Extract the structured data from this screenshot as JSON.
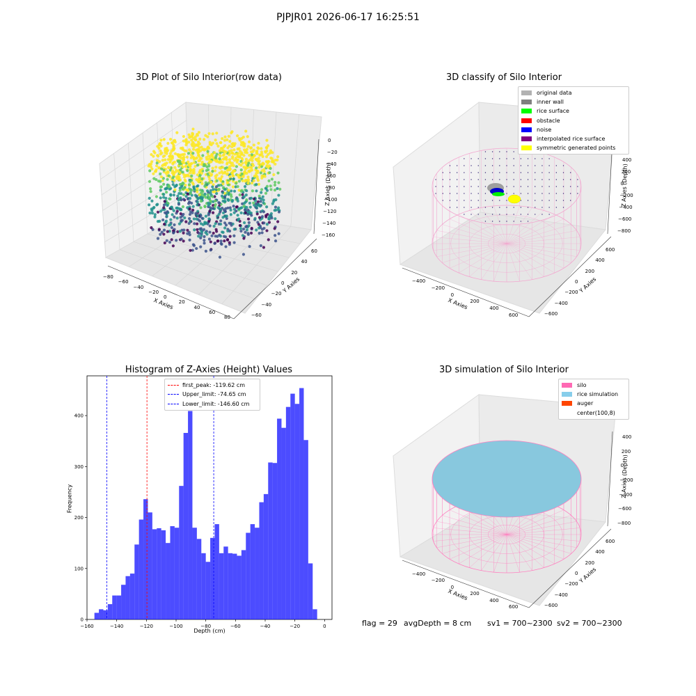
{
  "figure": {
    "suptitle": "PJPJR01 2026-06-17 16:25:51",
    "status": {
      "flag": "flag = 29",
      "avg_depth": "avgDepth = 8 cm",
      "sv1": "sv1 = 700~2300",
      "sv2": "sv2 = 700~2300"
    }
  },
  "panels": {
    "raw": {
      "title": "3D Plot of Silo Interior(row data)",
      "xlabel": "X Axies",
      "ylabel": "Y Axies",
      "zlabel": "Z Axies (Depth)",
      "xticks": [
        "−80",
        "−60",
        "−40",
        "−20",
        "0",
        "20",
        "40",
        "60",
        "80"
      ],
      "yticks": [
        "−60",
        "−40",
        "−20",
        "0",
        "20",
        "40",
        "60"
      ],
      "zticks": [
        "0",
        "−20",
        "−40",
        "−60",
        "−80",
        "−100",
        "−120",
        "−140",
        "−160"
      ],
      "colormap": "viridis"
    },
    "classify": {
      "title": "3D classify of Silo Interior",
      "xlabel": "X Axies",
      "ylabel": "Y Axies",
      "zlabel": "Z Axies (Depth)",
      "xticks": [
        "−400",
        "−200",
        "0",
        "200",
        "400",
        "600"
      ],
      "yticks": [
        "−600",
        "−400",
        "−200",
        "0",
        "200",
        "400",
        "600"
      ],
      "zticks": [
        "400",
        "200",
        "0",
        "−200",
        "−400",
        "−600",
        "−800"
      ],
      "legend": [
        {
          "label": "original data",
          "color": "#b2b2b2"
        },
        {
          "label": "inner wall",
          "color": "#808080"
        },
        {
          "label": "rice surface",
          "color": "#00ff00"
        },
        {
          "label": "obstacle",
          "color": "#ff0000"
        },
        {
          "label": "noise",
          "color": "#0000ff"
        },
        {
          "label": "interpolated rice surface",
          "color": "#800080"
        },
        {
          "label": "symmetric generated points",
          "color": "#ffff00"
        }
      ]
    },
    "simulation": {
      "title": "3D simulation of Silo Interior",
      "xlabel": "X Axies",
      "ylabel": "Y Axies",
      "zlabel": "Z Axies (Depth)",
      "xticks": [
        "−400",
        "−200",
        "0",
        "200",
        "400",
        "600"
      ],
      "yticks": [
        "−600",
        "−400",
        "−200",
        "0",
        "200",
        "400",
        "600"
      ],
      "zticks": [
        "400",
        "200",
        "0",
        "−200",
        "−400",
        "−600",
        "−800"
      ],
      "legend": [
        {
          "label": "silo",
          "color": "#ff69b4"
        },
        {
          "label": "rice simulation",
          "color": "#87ceeb"
        },
        {
          "label": "auger",
          "color": "#ff4500"
        },
        {
          "label": "center(100,8)",
          "color": "#ffffff"
        }
      ]
    }
  },
  "chart_data": [
    {
      "type": "bar",
      "title": "Histogram of Z-Axies (Height) Values",
      "xlabel": "Depth (cm)",
      "ylabel": "Frequency",
      "xlim": [
        -160,
        5
      ],
      "ylim": [
        0,
        478
      ],
      "xticks": [
        -160,
        -140,
        -120,
        -100,
        -80,
        -60,
        -40,
        -20,
        0
      ],
      "yticks": [
        0,
        100,
        200,
        300,
        400
      ],
      "bar_color": "#0000ff",
      "bin_start": -155,
      "bin_width": 3,
      "values": [
        13,
        20,
        18,
        30,
        47,
        47,
        68,
        85,
        90,
        147,
        196,
        236,
        210,
        177,
        179,
        175,
        150,
        183,
        180,
        262,
        366,
        409,
        180,
        158,
        130,
        113,
        160,
        187,
        130,
        143,
        130,
        129,
        125,
        136,
        170,
        187,
        180,
        230,
        246,
        308,
        307,
        394,
        376,
        417,
        443,
        423,
        454,
        352,
        110,
        20
      ],
      "reference_lines": [
        {
          "label": "first_peak: -119.62 cm",
          "x": -119.62,
          "color": "#ff0000"
        },
        {
          "label": "Upper_limit: -74.65 cm",
          "x": -74.65,
          "color": "#0000ff"
        },
        {
          "label": "Lower_limit: -146.60 cm",
          "x": -146.6,
          "color": "#0000ff"
        }
      ],
      "legend_position": "top-center"
    }
  ]
}
